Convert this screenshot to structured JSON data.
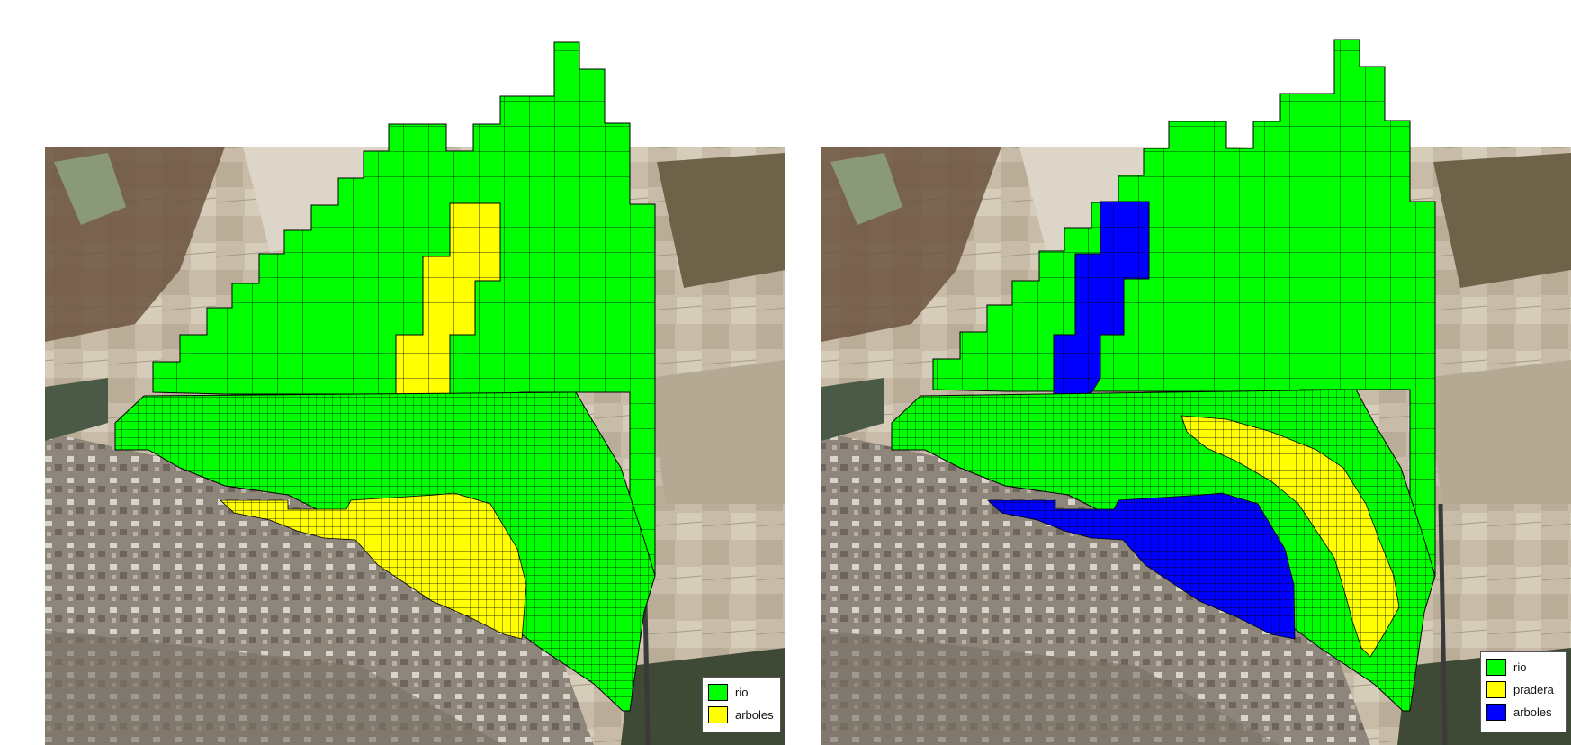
{
  "colors": {
    "rio": "#00ff00",
    "pradera": "#ffff00",
    "arboles_blue": "#0000ff",
    "arboles_yellow": "#ffff00",
    "grid_line": "#000000"
  },
  "maps": [
    {
      "legend": [
        {
          "label": "rio",
          "color": "#00ff00"
        },
        {
          "label": "arboles",
          "color": "#ffff00"
        }
      ]
    },
    {
      "legend": [
        {
          "label": "rio",
          "color": "#00ff00"
        },
        {
          "label": "pradera",
          "color": "#ffff00"
        },
        {
          "label": "arboles",
          "color": "#0000ff"
        }
      ]
    }
  ]
}
